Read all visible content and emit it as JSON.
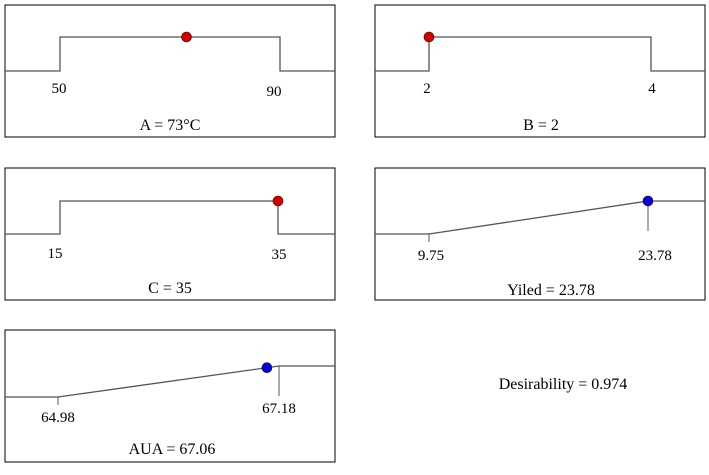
{
  "chart_data": [
    {
      "type": "line",
      "kind": "factor",
      "low_label": "50",
      "high_label": "90",
      "low": 50,
      "high": 90,
      "value": 73,
      "point_color": "#d00000",
      "caption": "A = 73°C"
    },
    {
      "type": "line",
      "kind": "factor",
      "low_label": "2",
      "high_label": "4",
      "low": 2,
      "high": 4,
      "value": 2,
      "point_color": "#d00000",
      "caption": "B = 2"
    },
    {
      "type": "line",
      "kind": "factor",
      "low_label": "15",
      "high_label": "35",
      "low": 15,
      "high": 35,
      "value": 35,
      "point_color": "#d00000",
      "caption": "C = 35"
    },
    {
      "type": "line",
      "kind": "response",
      "low_label": "9.75",
      "high_label": "23.78",
      "low": 9.75,
      "high": 23.78,
      "value": 23.78,
      "point_color": "#0000e0",
      "caption": "Yiled = 23.78"
    },
    {
      "type": "line",
      "kind": "response",
      "low_label": "64.98",
      "high_label": "67.18",
      "low": 64.98,
      "high": 67.18,
      "value": 67.06,
      "point_color": "#0000e0",
      "caption": "AUA = 67.06"
    }
  ],
  "desirability": "Desirability = 0.974"
}
